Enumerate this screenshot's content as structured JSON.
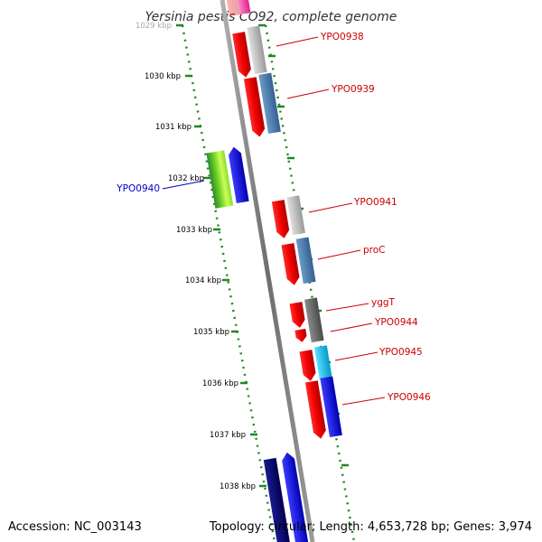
{
  "title": "Yersinia pestis CO92, complete genome",
  "accession_text": "Accession: NC_003143",
  "topology_text": "Topology: circular; Length: 4,653,728 bp; Genes: 3,974",
  "colors": {
    "tick": "#228822",
    "backbone": "#808080",
    "label_red": "#cc0000",
    "label_blue": "#0000cc"
  },
  "ticks": [
    {
      "label": "1029 kbp"
    },
    {
      "label": "1030 kbp"
    },
    {
      "label": "1031 kbp"
    },
    {
      "label": "1032 kbp"
    },
    {
      "label": "1033 kbp"
    },
    {
      "label": "1034 kbp"
    },
    {
      "label": "1035 kbp"
    },
    {
      "label": "1036 kbp"
    },
    {
      "label": "1037 kbp"
    },
    {
      "label": "1038 kbp"
    }
  ],
  "gene_labels": [
    {
      "text": "YPO0938",
      "color": "#cc0000"
    },
    {
      "text": "YPO0939",
      "color": "#cc0000"
    },
    {
      "text": "YPO0940",
      "color": "#0000cc"
    },
    {
      "text": "YPO0941",
      "color": "#cc0000"
    },
    {
      "text": "proC",
      "color": "#cc0000"
    },
    {
      "text": "yggT",
      "color": "#cc0000"
    },
    {
      "text": "YPO0944",
      "color": "#cc0000"
    },
    {
      "text": "YPO0945",
      "color": "#cc0000"
    },
    {
      "text": "YPO0946",
      "color": "#cc0000"
    }
  ]
}
